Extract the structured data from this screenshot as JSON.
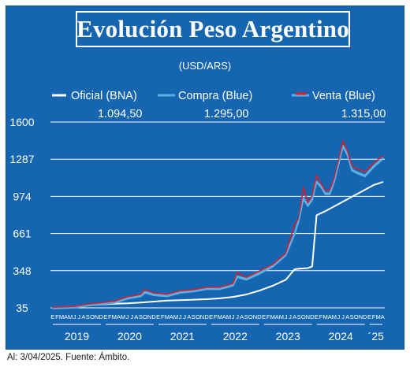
{
  "title": "Evolución Peso Argentino",
  "caption": "Al: 3/04/2025. Fuente: Ámbito.",
  "colors": {
    "panel": "#1565b0",
    "oficial": "#ffffff",
    "compra": "#5ab0e8",
    "venta": "#d6202b",
    "text": "#ffffff"
  },
  "chart_data": {
    "type": "line",
    "subtitle": "(USD/ARS)",
    "ylim": [
      35,
      1600
    ],
    "y_ticks": [
      "35",
      "348",
      "661",
      "974",
      "1287",
      "1600"
    ],
    "x_month_letters": [
      "E",
      "F",
      "M",
      "A",
      "M",
      "J",
      "J",
      "A",
      "S",
      "O",
      "N",
      "D"
    ],
    "x_year_labels": [
      "2019",
      "2020",
      "2021",
      "2022",
      "2023",
      "2024",
      "´25"
    ],
    "x_start": "2019-01",
    "x_end": "2025-04",
    "legend_placement": "top",
    "grid": true,
    "series": [
      {
        "name": "Oficial (BNA)",
        "last_value_label": "1.094,50",
        "x": [
          "2019-01",
          "2019-06",
          "2019-08",
          "2019-09",
          "2019-12",
          "2020-03",
          "2020-06",
          "2020-09",
          "2020-12",
          "2021-03",
          "2021-06",
          "2021-09",
          "2021-12",
          "2022-03",
          "2022-06",
          "2022-09",
          "2022-12",
          "2023-03",
          "2023-06",
          "2023-08",
          "2023-09",
          "2023-11",
          "2023-12",
          "2024-01",
          "2024-03",
          "2024-06",
          "2024-09",
          "2024-12",
          "2025-02",
          "2025-04"
        ],
        "values": [
          38,
          45,
          48,
          58,
          63,
          70,
          73,
          80,
          88,
          96,
          100,
          104,
          108,
          115,
          127,
          148,
          180,
          221,
          272,
          360,
          365,
          370,
          383,
          815,
          850,
          910,
          970,
          1030,
          1070,
          1094.5
        ]
      },
      {
        "name": "Compra (Blue)",
        "last_value_label": "1.295,00",
        "x": [
          "2019-01",
          "2019-06",
          "2019-08",
          "2019-09",
          "2019-12",
          "2020-03",
          "2020-06",
          "2020-09",
          "2020-10",
          "2020-12",
          "2021-03",
          "2021-06",
          "2021-09",
          "2021-12",
          "2022-03",
          "2022-06",
          "2022-07",
          "2022-09",
          "2022-12",
          "2023-03",
          "2023-06",
          "2023-08",
          "2023-09",
          "2023-10",
          "2023-11",
          "2023-12",
          "2024-01",
          "2024-02",
          "2024-03",
          "2024-04",
          "2024-05",
          "2024-06",
          "2024-07",
          "2024-08",
          "2024-09",
          "2024-10",
          "2024-12",
          "2025-02",
          "2025-04"
        ],
        "values": [
          38,
          45,
          55,
          63,
          72,
          85,
          120,
          140,
          170,
          150,
          140,
          170,
          180,
          200,
          200,
          230,
          300,
          280,
          330,
          390,
          485,
          660,
          780,
          960,
          900,
          950,
          1100,
          1060,
          1000,
          1000,
          1100,
          1250,
          1400,
          1330,
          1200,
          1180,
          1150,
          1230,
          1295
        ]
      },
      {
        "name": "Venta (Blue)",
        "last_value_label": "1.315,00",
        "x": [
          "2019-01",
          "2019-06",
          "2019-08",
          "2019-09",
          "2019-12",
          "2020-03",
          "2020-06",
          "2020-09",
          "2020-10",
          "2020-12",
          "2021-03",
          "2021-06",
          "2021-09",
          "2021-12",
          "2022-03",
          "2022-06",
          "2022-07",
          "2022-09",
          "2022-12",
          "2023-03",
          "2023-06",
          "2023-08",
          "2023-09",
          "2023-10",
          "2023-11",
          "2023-12",
          "2024-01",
          "2024-02",
          "2024-03",
          "2024-04",
          "2024-05",
          "2024-06",
          "2024-07",
          "2024-08",
          "2024-09",
          "2024-10",
          "2024-12",
          "2025-02",
          "2025-04"
        ],
        "values": [
          40,
          47,
          58,
          67,
          78,
          90,
          128,
          148,
          190,
          160,
          150,
          178,
          188,
          208,
          208,
          240,
          335,
          290,
          345,
          400,
          495,
          740,
          790,
          1050,
          920,
          980,
          1150,
          1080,
          1020,
          1030,
          1125,
          1275,
          1440,
          1360,
          1230,
          1210,
          1180,
          1255,
          1315
        ]
      }
    ]
  }
}
